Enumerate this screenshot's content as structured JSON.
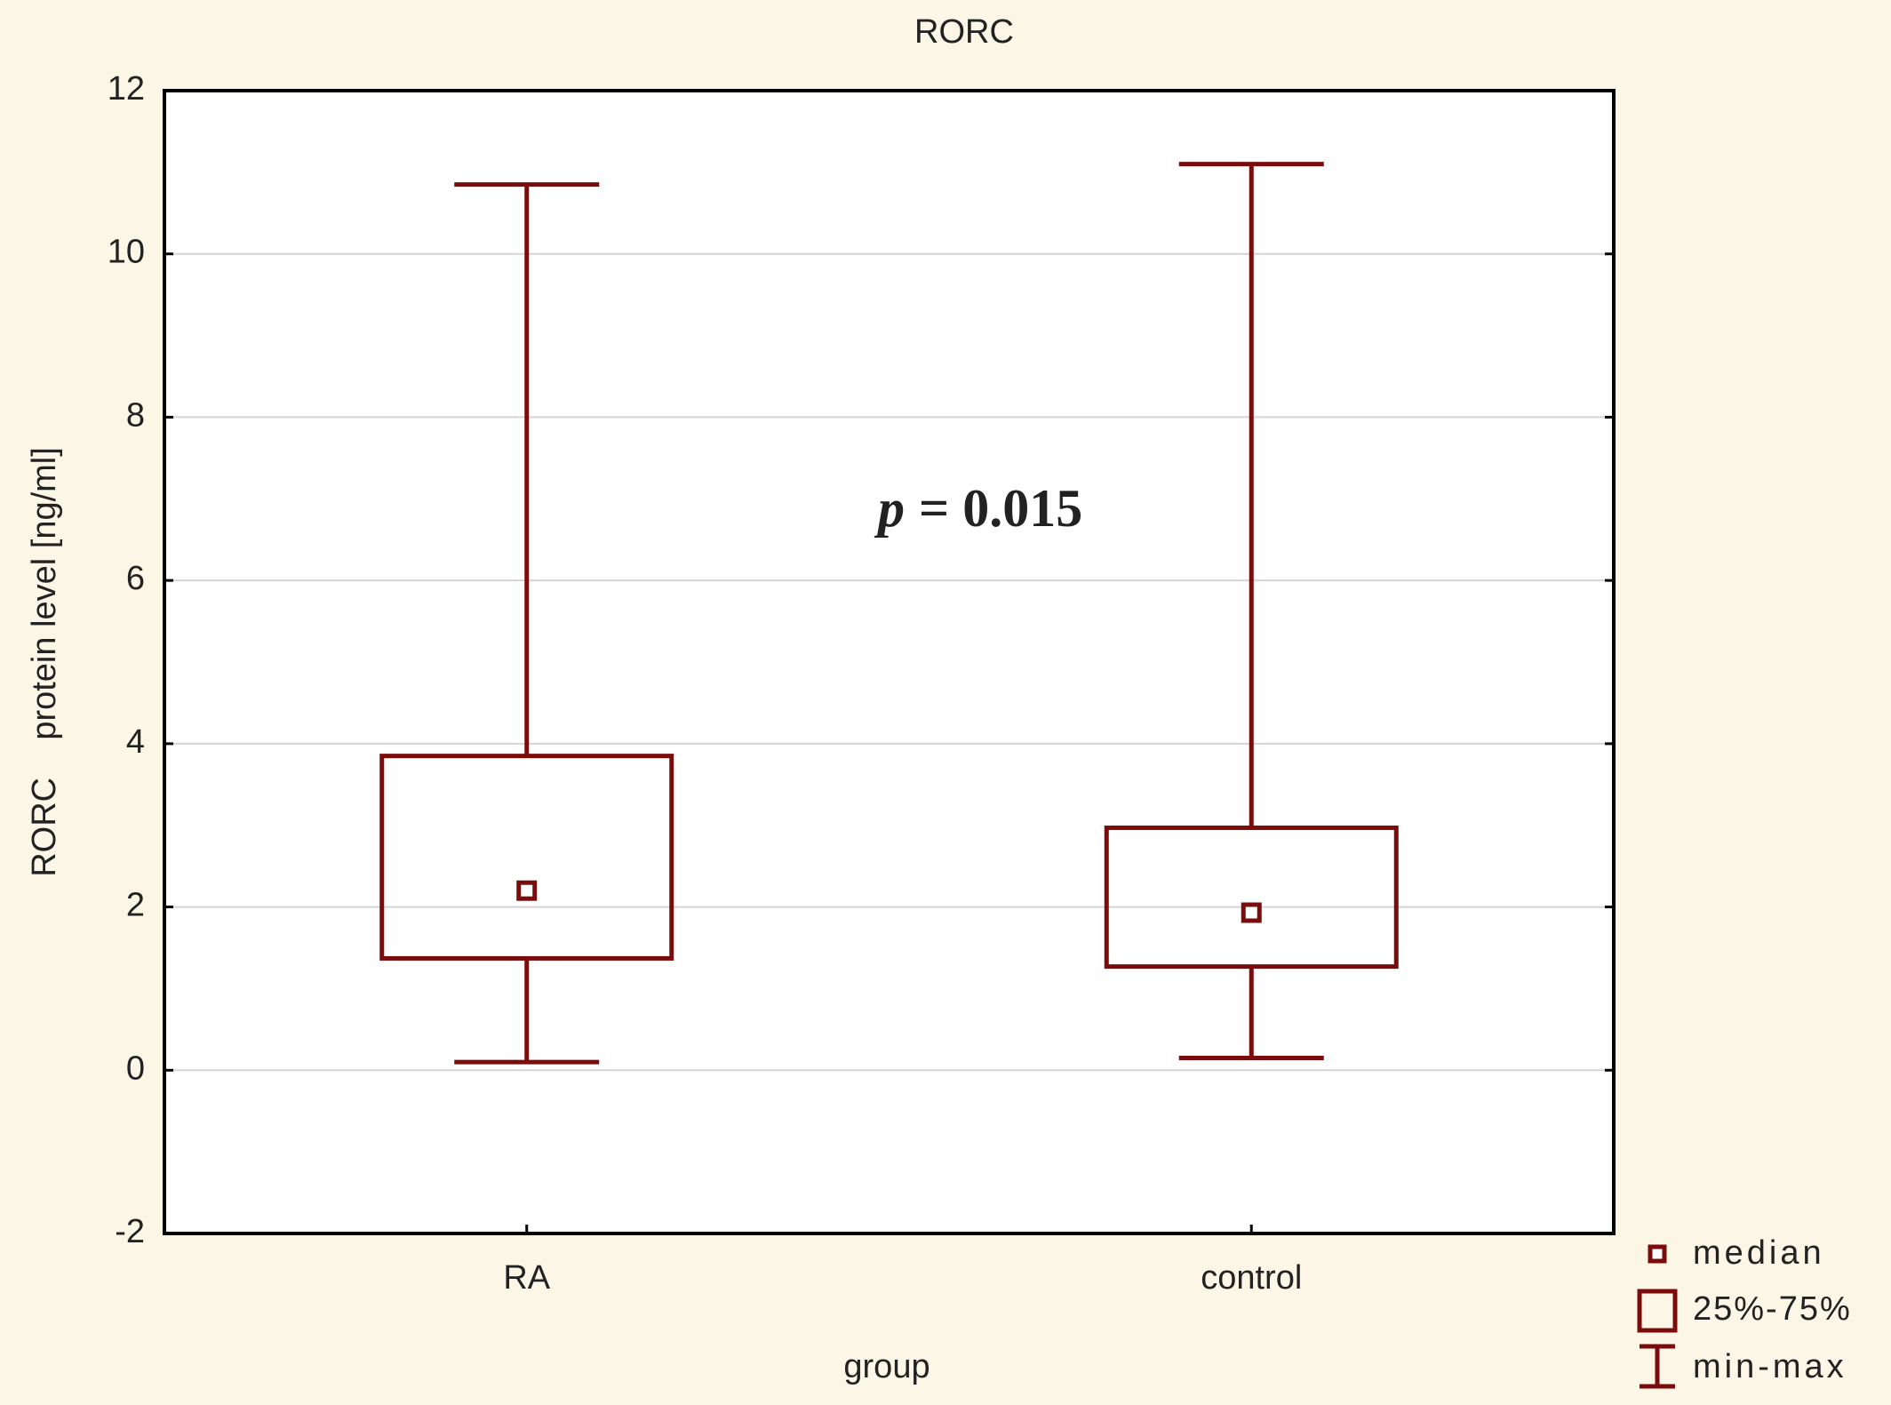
{
  "chart_data": {
    "type": "box",
    "title": "RORC",
    "x_label": "group",
    "y_label": "RORC    protein level [ng/ml]",
    "categories": [
      "RA",
      "control"
    ],
    "min": [
      0.1,
      0.15
    ],
    "q1": [
      1.37,
      1.27
    ],
    "median": [
      2.2,
      1.93
    ],
    "q3": [
      3.85,
      2.97
    ],
    "max": [
      10.85,
      11.1
    ],
    "color": "#7b0c0c",
    "ylim": [
      -2,
      12
    ],
    "yticks": [
      -2,
      0,
      2,
      4,
      6,
      8,
      10,
      12
    ],
    "grid": true,
    "annotation_symbol": "p",
    "annotation_text": "= 0.015",
    "legend": [
      "median",
      "25%-75%",
      "min-max"
    ]
  }
}
